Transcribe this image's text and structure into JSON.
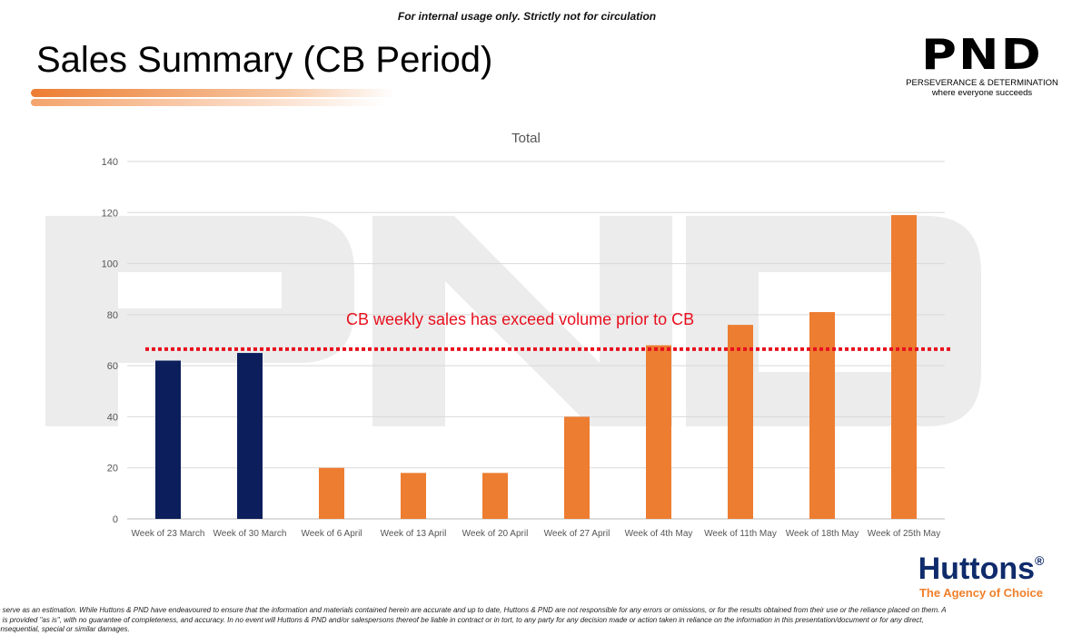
{
  "notice": "For internal usage only. Strictly not for circulation",
  "title": "Sales Summary (CB Period)",
  "logo": {
    "text": "PND",
    "tagline1": "PERSEVERANCE & DETERMINATION",
    "tagline2": "where everyone succeeds"
  },
  "watermark": "PND",
  "huttons": {
    "name": "Huttons",
    "mark": "®",
    "tagline": "The Agency of Choice"
  },
  "disclaimer": [
    "e serve as an estimation. While Huttons & PND have endeavoured to ensure that the information and materials contained herein are accurate and up to date, Huttons & PND are not responsible for any errors or omissions, or for the results obtained from their use or the reliance placed on them. A",
    "n is provided \"as is\", with no guarantee of completeness, and accuracy. In no event will Huttons & PND and/or salespersons thereof be liable in contract or in tort, to any party for any decision made or action taken in reliance on the information in this presentation/document or for any direct,",
    "onsequential, special or similar damages."
  ],
  "chart_data": {
    "type": "bar",
    "title": "Total",
    "categories": [
      "Week of 23 March",
      "Week of 30 March",
      "Week of 6 April",
      "Week of 13 April",
      "Week of 20 April",
      "Week of 27 April",
      "Week of 4th May",
      "Week of 11th May",
      "Week of 18th May",
      "Week of 25th May"
    ],
    "values": [
      62,
      65,
      20,
      18,
      18,
      40,
      68,
      76,
      81,
      119
    ],
    "bar_colors": [
      "#0c1f5c",
      "#0c1f5c",
      "#ed7d31",
      "#ed7d31",
      "#ed7d31",
      "#ed7d31",
      "#ed7d31",
      "#ed7d31",
      "#ed7d31",
      "#ed7d31"
    ],
    "ylim": [
      0,
      140
    ],
    "yticks": [
      0,
      20,
      40,
      60,
      80,
      100,
      120,
      140
    ],
    "grid": true,
    "reference_line": {
      "value": 66.5,
      "color": "#e8101e",
      "style": "dotted"
    },
    "annotation": {
      "text": "CB weekly sales has exceed volume prior to CB",
      "color": "#e8101e"
    }
  }
}
